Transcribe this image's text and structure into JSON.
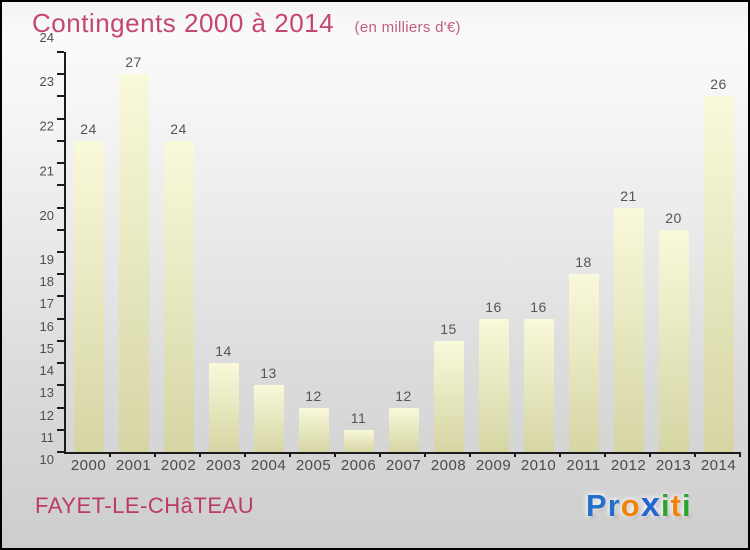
{
  "header": {
    "title": "Contingents 2000 à 2014",
    "subtitle": "(en milliers d'€)"
  },
  "chart_data": {
    "type": "bar",
    "title": "Contingents 2000 à 2014",
    "subtitle": "(en milliers d'€)",
    "categories": [
      "2000",
      "2001",
      "2002",
      "2003",
      "2004",
      "2005",
      "2006",
      "2007",
      "2008",
      "2009",
      "2010",
      "2011",
      "2012",
      "2013",
      "2014"
    ],
    "values": [
      24,
      27,
      24,
      14,
      13,
      12,
      11,
      12,
      15,
      16,
      16,
      18,
      21,
      20,
      26
    ],
    "xlabel": "",
    "ylabel": "",
    "ylim": [
      10,
      28
    ],
    "y_tick_step": 1,
    "grid": false,
    "legend": false,
    "value_labels_shown": true
  },
  "footer": {
    "place": "FAYET-LE-CHâTEAU"
  },
  "logo": {
    "name": "Proxiti",
    "letters": [
      {
        "ch": "P",
        "color": "#2170cc",
        "x": false
      },
      {
        "ch": "r",
        "color": "#2170cc",
        "x": false
      },
      {
        "ch": "o",
        "color": "#f2830a",
        "x": false
      },
      {
        "ch": "x",
        "color": "#2465d2",
        "x": true
      },
      {
        "ch": "i",
        "color": "#2ba32b",
        "x": false
      },
      {
        "ch": "t",
        "color": "#f2830a",
        "x": false
      },
      {
        "ch": "i",
        "color": "#2ba32b",
        "x": false
      }
    ]
  },
  "colors": {
    "title": "#c54671",
    "subtitle": "#c06080",
    "place": "#bc3a66",
    "axis": "#1b1b1b",
    "tick_label": "#4f4f4f",
    "value_label": "#555555",
    "bar_top": "#f9f9db",
    "bar_bottom": "#d5d5a4",
    "background_top": "#f8f8f8",
    "background_bottom": "#cdcdcd"
  }
}
